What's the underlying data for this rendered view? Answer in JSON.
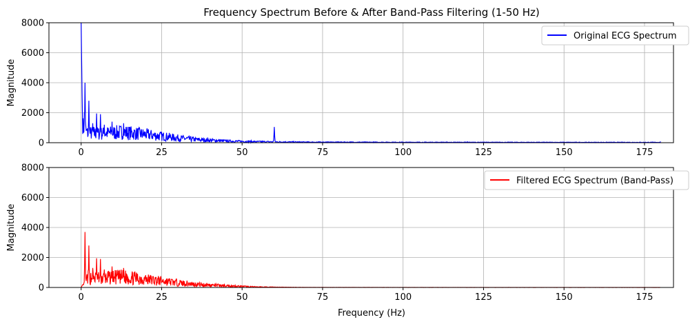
{
  "chart_data": [
    {
      "type": "line",
      "title": "Frequency Spectrum Before & After Band-Pass Filtering (1-50 Hz)",
      "xlabel": "",
      "ylabel": "Magnitude",
      "xlim": [
        -10,
        184
      ],
      "ylim": [
        0,
        8000
      ],
      "xticks": [
        0,
        25,
        50,
        75,
        100,
        125,
        150,
        175
      ],
      "yticks": [
        0,
        2000,
        4000,
        6000,
        8000
      ],
      "grid": true,
      "legend_position": "top-right",
      "series": [
        {
          "name": "Original ECG Spectrum",
          "color": "#0000ff",
          "peaks": [
            [
              0,
              8000
            ],
            [
              0.3,
              3200
            ],
            [
              1.0,
              2000
            ],
            [
              1.2,
              4000
            ],
            [
              2.4,
              2800
            ],
            [
              3.6,
              1300
            ],
            [
              4.8,
              1950
            ],
            [
              6.0,
              1900
            ],
            [
              7.2,
              1200
            ],
            [
              9.6,
              1400
            ],
            [
              13.2,
              1300
            ],
            [
              60,
              1050
            ],
            [
              120,
              60
            ],
            [
              180,
              80
            ]
          ],
          "envelope": [
            [
              0.5,
              1800
            ],
            [
              2,
              1100
            ],
            [
              4,
              1100
            ],
            [
              6,
              1050
            ],
            [
              8,
              1100
            ],
            [
              10,
              1150
            ],
            [
              13,
              1200
            ],
            [
              16,
              1100
            ],
            [
              20,
              950
            ],
            [
              25,
              750
            ],
            [
              30,
              550
            ],
            [
              35,
              380
            ],
            [
              40,
              280
            ],
            [
              45,
              200
            ],
            [
              50,
              150
            ],
            [
              55,
              120
            ],
            [
              60,
              100
            ],
            [
              63,
              90
            ],
            [
              70,
              70
            ],
            [
              100,
              50
            ],
            [
              150,
              40
            ],
            [
              180,
              40
            ]
          ]
        },
        {
          "name": "Filtered ECG Spectrum (Band-Pass)",
          "color": "#ff0000",
          "peaks": [
            [
              1.2,
              3700
            ],
            [
              2.4,
              2800
            ],
            [
              3.6,
              1300
            ],
            [
              4.8,
              1950
            ],
            [
              6.0,
              1900
            ],
            [
              7.2,
              1200
            ],
            [
              9.6,
              1400
            ],
            [
              13.2,
              1300
            ]
          ],
          "envelope": [
            [
              0,
              30
            ],
            [
              0.8,
              300
            ],
            [
              2,
              1100
            ],
            [
              4,
              1100
            ],
            [
              6,
              1050
            ],
            [
              8,
              1100
            ],
            [
              10,
              1150
            ],
            [
              13,
              1200
            ],
            [
              16,
              1100
            ],
            [
              20,
              950
            ],
            [
              25,
              750
            ],
            [
              30,
              550
            ],
            [
              35,
              380
            ],
            [
              40,
              280
            ],
            [
              45,
              200
            ],
            [
              50,
              120
            ],
            [
              55,
              60
            ],
            [
              60,
              40
            ],
            [
              65,
              20
            ],
            [
              70,
              10
            ],
            [
              100,
              5
            ],
            [
              180,
              3
            ]
          ]
        }
      ]
    },
    {
      "type": "line",
      "title": "",
      "xlabel": "Frequency (Hz)",
      "ylabel": "Magnitude"
    }
  ]
}
